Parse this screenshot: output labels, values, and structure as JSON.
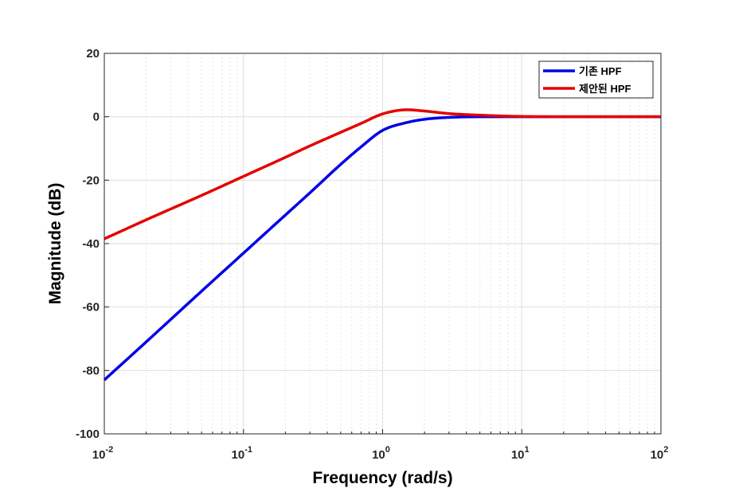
{
  "chart_data": {
    "type": "line",
    "xlabel": "Frequency  (rad/s)",
    "ylabel": "Magnitude (dB)",
    "x_scale": "log",
    "xlim": [
      0.01,
      100
    ],
    "ylim": [
      -100,
      20
    ],
    "x_ticks": [
      {
        "base": "10",
        "exp": "-2"
      },
      {
        "base": "10",
        "exp": "-1"
      },
      {
        "base": "10",
        "exp": "0"
      },
      {
        "base": "10",
        "exp": "1"
      },
      {
        "base": "10",
        "exp": "2"
      }
    ],
    "y_ticks": [
      "20",
      "0",
      "-20",
      "-40",
      "-60",
      "-80",
      "-100"
    ],
    "grid": true,
    "legend_position": "top-right",
    "series": [
      {
        "name": "기존 HPF",
        "color": "#0000e6",
        "x": [
          0.01,
          0.02,
          0.05,
          0.1,
          0.2,
          0.3,
          0.5,
          0.7,
          1.0,
          1.5,
          2.0,
          3.0,
          5.0,
          10,
          30,
          100
        ],
        "y": [
          -83,
          -71,
          -55,
          -43,
          -31,
          -24,
          -15,
          -9.5,
          -4.3,
          -1.8,
          -0.8,
          -0.2,
          0.0,
          0.0,
          0.0,
          0.0
        ]
      },
      {
        "name": "제안된 HPF",
        "color": "#e60000",
        "x": [
          0.01,
          0.02,
          0.05,
          0.1,
          0.2,
          0.3,
          0.5,
          0.7,
          1.0,
          1.5,
          2.0,
          3.0,
          5.0,
          10,
          30,
          100
        ],
        "y": [
          -38.5,
          -32.5,
          -24.8,
          -18.8,
          -12.8,
          -9.2,
          -4.9,
          -2.1,
          0.9,
          2.2,
          1.8,
          1.0,
          0.5,
          0.1,
          0.0,
          0.0
        ]
      }
    ]
  }
}
